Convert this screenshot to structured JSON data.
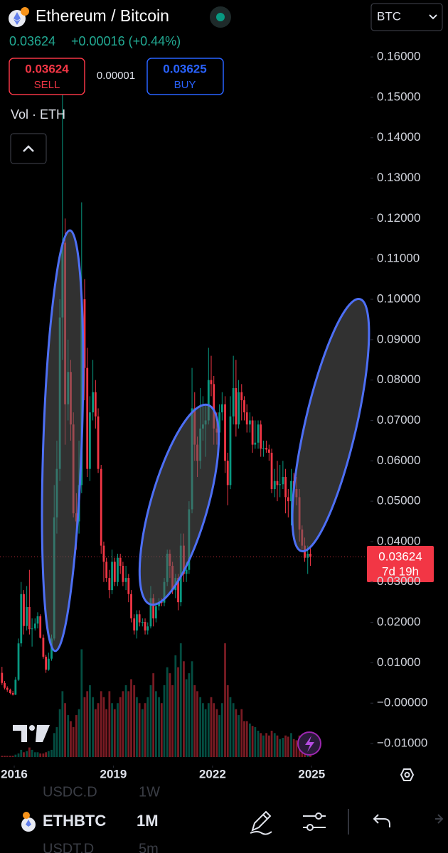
{
  "header": {
    "title": "Ethereum / Bitcoin",
    "price": "0.03624",
    "change": "+0.00016 (+0.44%)",
    "currency": "BTC",
    "sell_price": "0.03624",
    "sell_label": "SELL",
    "spread": "0.00001",
    "buy_price": "0.03625",
    "buy_label": "BUY",
    "volume_label": "Vol · ETH"
  },
  "price_tag": {
    "price": "0.03624",
    "countdown": "7d 19h"
  },
  "toolbar": {
    "symbol": "ETHBTC",
    "interval": "1M",
    "ghost_symbol_1": "USDC.D",
    "ghost_interval_1": "1W",
    "ghost_symbol_2": "USDT.D",
    "ghost_interval_2": "5m"
  },
  "chart_data": {
    "type": "candlestick",
    "up_color": "#089981",
    "down_color": "#f23645",
    "xlim": [
      2015.57,
      2026.65
    ],
    "xticks": [
      2016,
      2019,
      2022,
      2025
    ],
    "ylim": [
      -0.0151,
      0.1741
    ],
    "yticks": [
      {
        "value": 0.16,
        "label": "0.16000"
      },
      {
        "value": 0.15,
        "label": "0.15000"
      },
      {
        "value": 0.14,
        "label": "0.14000"
      },
      {
        "value": 0.13,
        "label": "0.13000"
      },
      {
        "value": 0.12,
        "label": "0.12000"
      },
      {
        "value": 0.11,
        "label": "0.11000"
      },
      {
        "value": 0.1,
        "label": "0.10000"
      },
      {
        "value": 0.09,
        "label": "0.09000"
      },
      {
        "value": 0.08,
        "label": "0.08000"
      },
      {
        "value": 0.07,
        "label": "0.07000"
      },
      {
        "value": 0.06,
        "label": "0.06000"
      },
      {
        "value": 0.05,
        "label": "0.05000"
      },
      {
        "value": 0.04,
        "label": "0.04000"
      },
      {
        "value": 0.03,
        "label": "0.03000"
      },
      {
        "value": 0.02,
        "label": "0.02000"
      },
      {
        "value": 0.01,
        "label": "0.01000"
      },
      {
        "value": 0,
        "label": "−0.00000"
      },
      {
        "value": -0.01,
        "label": "−0.01000"
      }
    ],
    "x": [
      2015.63,
      2015.71,
      2015.79,
      2015.88,
      2015.96,
      2016.04,
      2016.13,
      2016.21,
      2016.29,
      2016.38,
      2016.46,
      2016.54,
      2016.63,
      2016.71,
      2016.79,
      2016.88,
      2016.96,
      2017.04,
      2017.13,
      2017.21,
      2017.29,
      2017.38,
      2017.46,
      2017.54,
      2017.63,
      2017.71,
      2017.79,
      2017.88,
      2017.96,
      2018.04,
      2018.13,
      2018.21,
      2018.29,
      2018.38,
      2018.46,
      2018.54,
      2018.63,
      2018.71,
      2018.79,
      2018.88,
      2018.96,
      2019.04,
      2019.13,
      2019.21,
      2019.29,
      2019.38,
      2019.46,
      2019.54,
      2019.63,
      2019.71,
      2019.79,
      2019.88,
      2019.96,
      2020.04,
      2020.13,
      2020.21,
      2020.29,
      2020.38,
      2020.46,
      2020.54,
      2020.63,
      2020.71,
      2020.79,
      2020.88,
      2020.96,
      2021.04,
      2021.13,
      2021.21,
      2021.29,
      2021.38,
      2021.46,
      2021.54,
      2021.63,
      2021.71,
      2021.79,
      2021.88,
      2021.96,
      2022.04,
      2022.13,
      2022.21,
      2022.29,
      2022.38,
      2022.46,
      2022.54,
      2022.63,
      2022.71,
      2022.79,
      2022.88,
      2022.96,
      2023.04,
      2023.13,
      2023.21,
      2023.29,
      2023.38,
      2023.46,
      2023.54,
      2023.63,
      2023.71,
      2023.79,
      2023.88,
      2023.96,
      2024.04,
      2024.13,
      2024.21,
      2024.29,
      2024.38,
      2024.46,
      2024.54,
      2024.63,
      2024.71,
      2024.79,
      2024.88,
      2024.96
    ],
    "ohlc": [
      [
        0.0075,
        0.009,
        0.0045,
        0.005
      ],
      [
        0.005,
        0.0055,
        0.0034,
        0.0038
      ],
      [
        0.0038,
        0.0042,
        0.0028,
        0.0033
      ],
      [
        0.0033,
        0.0036,
        0.0022,
        0.0025
      ],
      [
        0.0025,
        0.003,
        0.0019,
        0.0021
      ],
      [
        0.0021,
        0.0065,
        0.002,
        0.0058
      ],
      [
        0.0058,
        0.016,
        0.0055,
        0.0148
      ],
      [
        0.0148,
        0.03,
        0.014,
        0.027
      ],
      [
        0.027,
        0.028,
        0.017,
        0.0191
      ],
      [
        0.0191,
        0.029,
        0.018,
        0.0238
      ],
      [
        0.0238,
        0.033,
        0.017,
        0.0183
      ],
      [
        0.0183,
        0.021,
        0.014,
        0.0185
      ],
      [
        0.0185,
        0.021,
        0.018,
        0.0197
      ],
      [
        0.0197,
        0.0225,
        0.0185,
        0.0215
      ],
      [
        0.0215,
        0.022,
        0.016,
        0.0162
      ],
      [
        0.0162,
        0.017,
        0.011,
        0.0115
      ],
      [
        0.0115,
        0.012,
        0.0075,
        0.0083
      ],
      [
        0.0083,
        0.0125,
        0.008,
        0.011
      ],
      [
        0.011,
        0.017,
        0.0105,
        0.016
      ],
      [
        0.016,
        0.054,
        0.0155,
        0.046
      ],
      [
        0.046,
        0.065,
        0.042,
        0.058
      ],
      [
        0.058,
        0.1,
        0.055,
        0.0955
      ],
      [
        0.0955,
        0.156,
        0.085,
        0.114
      ],
      [
        0.114,
        0.12,
        0.064,
        0.074
      ],
      [
        0.074,
        0.09,
        0.07,
        0.082
      ],
      [
        0.082,
        0.085,
        0.065,
        0.069
      ],
      [
        0.069,
        0.072,
        0.046,
        0.047
      ],
      [
        0.047,
        0.052,
        0.038,
        0.045
      ],
      [
        0.045,
        0.065,
        0.042,
        0.054
      ],
      [
        0.054,
        0.124,
        0.052,
        0.1
      ],
      [
        0.1,
        0.105,
        0.075,
        0.083
      ],
      [
        0.083,
        0.088,
        0.056,
        0.058
      ],
      [
        0.058,
        0.076,
        0.055,
        0.072
      ],
      [
        0.072,
        0.085,
        0.07,
        0.077
      ],
      [
        0.077,
        0.08,
        0.068,
        0.071
      ],
      [
        0.071,
        0.073,
        0.057,
        0.058
      ],
      [
        0.058,
        0.059,
        0.037,
        0.039
      ],
      [
        0.039,
        0.04,
        0.03,
        0.035
      ],
      [
        0.035,
        0.036,
        0.03,
        0.031
      ],
      [
        0.031,
        0.033,
        0.026,
        0.028
      ],
      [
        0.028,
        0.038,
        0.027,
        0.035
      ],
      [
        0.035,
        0.036,
        0.029,
        0.03
      ],
      [
        0.03,
        0.037,
        0.029,
        0.036
      ],
      [
        0.036,
        0.037,
        0.032,
        0.034
      ],
      [
        0.034,
        0.035,
        0.029,
        0.03
      ],
      [
        0.03,
        0.034,
        0.028,
        0.031
      ],
      [
        0.031,
        0.032,
        0.025,
        0.027
      ],
      [
        0.027,
        0.028,
        0.02,
        0.021
      ],
      [
        0.021,
        0.022,
        0.017,
        0.018
      ],
      [
        0.018,
        0.023,
        0.016,
        0.022
      ],
      [
        0.022,
        0.023,
        0.019,
        0.02
      ],
      [
        0.02,
        0.021,
        0.019,
        0.0201
      ],
      [
        0.0201,
        0.021,
        0.017,
        0.018
      ],
      [
        0.018,
        0.02,
        0.017,
        0.019
      ],
      [
        0.019,
        0.029,
        0.0185,
        0.026
      ],
      [
        0.026,
        0.027,
        0.019,
        0.021
      ],
      [
        0.021,
        0.025,
        0.02,
        0.024
      ],
      [
        0.024,
        0.026,
        0.023,
        0.025
      ],
      [
        0.025,
        0.026,
        0.024,
        0.0249
      ],
      [
        0.0249,
        0.031,
        0.024,
        0.03
      ],
      [
        0.03,
        0.038,
        0.029,
        0.037
      ],
      [
        0.037,
        0.038,
        0.031,
        0.034
      ],
      [
        0.034,
        0.035,
        0.027,
        0.028
      ],
      [
        0.028,
        0.032,
        0.026,
        0.031
      ],
      [
        0.031,
        0.032,
        0.023,
        0.025
      ],
      [
        0.025,
        0.042,
        0.024,
        0.039
      ],
      [
        0.039,
        0.042,
        0.03,
        0.032
      ],
      [
        0.032,
        0.035,
        0.03,
        0.033
      ],
      [
        0.033,
        0.05,
        0.032,
        0.048
      ],
      [
        0.048,
        0.083,
        0.047,
        0.073
      ],
      [
        0.073,
        0.077,
        0.06,
        0.064
      ],
      [
        0.064,
        0.066,
        0.056,
        0.06
      ],
      [
        0.06,
        0.078,
        0.058,
        0.068
      ],
      [
        0.068,
        0.076,
        0.065,
        0.069
      ],
      [
        0.069,
        0.074,
        0.061,
        0.07
      ],
      [
        0.07,
        0.088,
        0.069,
        0.08
      ],
      [
        0.08,
        0.086,
        0.076,
        0.079
      ],
      [
        0.079,
        0.081,
        0.064,
        0.068
      ],
      [
        0.068,
        0.072,
        0.064,
        0.067
      ],
      [
        0.067,
        0.074,
        0.064,
        0.072
      ],
      [
        0.072,
        0.077,
        0.07,
        0.074
      ],
      [
        0.074,
        0.076,
        0.057,
        0.06
      ],
      [
        0.06,
        0.062,
        0.049,
        0.054
      ],
      [
        0.054,
        0.076,
        0.053,
        0.071
      ],
      [
        0.071,
        0.086,
        0.069,
        0.078
      ],
      [
        0.078,
        0.085,
        0.066,
        0.069
      ],
      [
        0.069,
        0.08,
        0.068,
        0.077
      ],
      [
        0.077,
        0.079,
        0.07,
        0.075
      ],
      [
        0.075,
        0.076,
        0.07,
        0.072
      ],
      [
        0.072,
        0.074,
        0.067,
        0.069
      ],
      [
        0.069,
        0.072,
        0.067,
        0.07
      ],
      [
        0.07,
        0.071,
        0.062,
        0.064
      ],
      [
        0.064,
        0.07,
        0.063,
        0.0645
      ],
      [
        0.0645,
        0.07,
        0.063,
        0.069
      ],
      [
        0.069,
        0.07,
        0.061,
        0.063
      ],
      [
        0.063,
        0.065,
        0.061,
        0.0632
      ],
      [
        0.0632,
        0.065,
        0.062,
        0.0628
      ],
      [
        0.0628,
        0.064,
        0.06,
        0.062
      ],
      [
        0.062,
        0.063,
        0.052,
        0.053
      ],
      [
        0.053,
        0.058,
        0.051,
        0.055
      ],
      [
        0.055,
        0.06,
        0.05,
        0.054
      ],
      [
        0.054,
        0.059,
        0.051,
        0.0542
      ],
      [
        0.0542,
        0.06,
        0.053,
        0.056
      ],
      [
        0.056,
        0.058,
        0.047,
        0.051
      ],
      [
        0.051,
        0.053,
        0.046,
        0.05
      ],
      [
        0.05,
        0.058,
        0.044,
        0.055
      ],
      [
        0.055,
        0.057,
        0.051,
        0.053
      ],
      [
        0.053,
        0.056,
        0.049,
        0.051
      ],
      [
        0.051,
        0.053,
        0.04,
        0.043
      ],
      [
        0.043,
        0.044,
        0.038,
        0.039
      ],
      [
        0.039,
        0.041,
        0.035,
        0.036
      ],
      [
        0.036,
        0.039,
        0.032,
        0.037
      ],
      [
        0.037,
        0.039,
        0.034,
        0.03624
      ]
    ],
    "volume": [
      1,
      1,
      1,
      1,
      1,
      2,
      3,
      6,
      4,
      5,
      8,
      6,
      4,
      4,
      3,
      3,
      4,
      5,
      6,
      20,
      25,
      40,
      55,
      45,
      35,
      30,
      25,
      35,
      40,
      90,
      50,
      55,
      60,
      50,
      40,
      45,
      55,
      50,
      40,
      55,
      45,
      40,
      45,
      50,
      55,
      60,
      55,
      65,
      60,
      50,
      45,
      40,
      45,
      50,
      60,
      70,
      55,
      50,
      45,
      60,
      75,
      70,
      60,
      85,
      75,
      95,
      80,
      65,
      70,
      80,
      60,
      55,
      50,
      45,
      40,
      45,
      50,
      45,
      40,
      35,
      45,
      95,
      60,
      50,
      45,
      40,
      35,
      40,
      30,
      30,
      28,
      26,
      25,
      22,
      20,
      18,
      20,
      18,
      22,
      20,
      18,
      15,
      16,
      18,
      17,
      20,
      15,
      14,
      18,
      16,
      12,
      14,
      8
    ]
  }
}
